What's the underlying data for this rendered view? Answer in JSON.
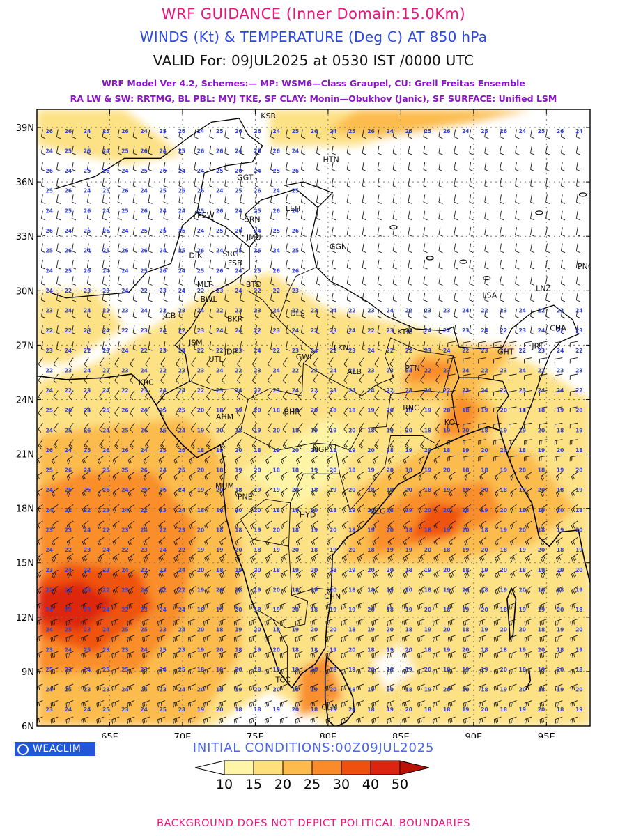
{
  "header": {
    "title": "WRF GUIDANCE (Inner Domain:15.0Km)",
    "subtitle": "WINDS (Kt) & TEMPERATURE (Deg C) AT 850 hPa",
    "valid": "VALID For: 09JUL2025 at 0530 IST /0000 UTC",
    "model_line": "WRF Model Ver 4.2, Schemes:— MP: WSM6—Class Graupel, CU: Grell Freitas Ensemble",
    "scheme_line": "RA LW & SW: RRTMG, BL PBL: MYJ TKE, SF CLAY: Monin—Obukhov (Janic), SF SURFACE: Unified LSM"
  },
  "colors": {
    "title": "#e8157a",
    "subtitle": "#2b48e6",
    "valid": "#111111",
    "schemes": "#8a14c8",
    "grid": "#777777",
    "coast": "#000000",
    "isotherm_label": "#3040d8",
    "logo_bg": "#2355d8",
    "init": "#4a68e6",
    "footer": "#e8157a"
  },
  "map": {
    "lon_range": [
      60,
      98
    ],
    "lat_range": [
      6,
      40
    ],
    "lon_ticks": [
      {
        "lon": 65,
        "label": "65E"
      },
      {
        "lon": 70,
        "label": "70E"
      },
      {
        "lon": 75,
        "label": "75E"
      },
      {
        "lon": 80,
        "label": "80E"
      },
      {
        "lon": 85,
        "label": "85E"
      },
      {
        "lon": 90,
        "label": "90E"
      },
      {
        "lon": 95,
        "label": "95E"
      }
    ],
    "lat_ticks": [
      {
        "lat": 39,
        "label": "39N"
      },
      {
        "lat": 36,
        "label": "36N"
      },
      {
        "lat": 33,
        "label": "33N"
      },
      {
        "lat": 30,
        "label": "30N"
      },
      {
        "lat": 27,
        "label": "27N"
      },
      {
        "lat": 24,
        "label": "24N"
      },
      {
        "lat": 21,
        "label": "21N"
      },
      {
        "lat": 18,
        "label": "18N"
      },
      {
        "lat": 15,
        "label": "15N"
      },
      {
        "lat": 12,
        "label": "12N"
      },
      {
        "lat": 9,
        "label": "9N"
      },
      {
        "lat": 6,
        "label": "6N"
      }
    ],
    "stations": [
      {
        "code": "KSR",
        "lon": 75.9,
        "lat": 39.5
      },
      {
        "code": "HTN",
        "lon": 80.2,
        "lat": 37.1
      },
      {
        "code": "GGT",
        "lon": 74.3,
        "lat": 36.1
      },
      {
        "code": "LEH",
        "lon": 77.6,
        "lat": 34.4
      },
      {
        "code": "PSW",
        "lon": 71.6,
        "lat": 34.0
      },
      {
        "code": "SRN",
        "lon": 74.8,
        "lat": 33.8
      },
      {
        "code": "JMU",
        "lon": 74.9,
        "lat": 32.8
      },
      {
        "code": "GGN",
        "lon": 80.7,
        "lat": 32.3
      },
      {
        "code": "DIK",
        "lon": 70.9,
        "lat": 31.8
      },
      {
        "code": "SRG",
        "lon": 73.3,
        "lat": 31.9
      },
      {
        "code": "FSB",
        "lon": 73.6,
        "lat": 31.4
      },
      {
        "code": "PNG",
        "lon": 97.7,
        "lat": 31.2
      },
      {
        "code": "MLT",
        "lon": 71.5,
        "lat": 30.2
      },
      {
        "code": "BTD",
        "lon": 74.9,
        "lat": 30.2
      },
      {
        "code": "LNZ",
        "lon": 94.8,
        "lat": 30.0
      },
      {
        "code": "BWL",
        "lon": 71.8,
        "lat": 29.4
      },
      {
        "code": "LSA",
        "lon": 91.1,
        "lat": 29.6
      },
      {
        "code": "JCB",
        "lon": 69.1,
        "lat": 28.5
      },
      {
        "code": "DLS",
        "lon": 77.9,
        "lat": 28.6
      },
      {
        "code": "BKR",
        "lon": 73.6,
        "lat": 28.3
      },
      {
        "code": "KTM",
        "lon": 85.3,
        "lat": 27.6
      },
      {
        "code": "JSM",
        "lon": 70.9,
        "lat": 27.0
      },
      {
        "code": "JDP",
        "lon": 73.3,
        "lat": 26.5
      },
      {
        "code": "LKN",
        "lon": 80.9,
        "lat": 26.7
      },
      {
        "code": "GHT",
        "lon": 92.2,
        "lat": 26.5
      },
      {
        "code": "UTL",
        "lon": 72.3,
        "lat": 26.1
      },
      {
        "code": "GWL",
        "lon": 78.4,
        "lat": 26.2
      },
      {
        "code": "PTN",
        "lon": 85.8,
        "lat": 25.6
      },
      {
        "code": "ALB",
        "lon": 81.8,
        "lat": 25.4
      },
      {
        "code": "KRC",
        "lon": 67.5,
        "lat": 24.8
      },
      {
        "code": "RNC",
        "lon": 85.7,
        "lat": 23.4
      },
      {
        "code": "BHP",
        "lon": 77.5,
        "lat": 23.2
      },
      {
        "code": "AHM",
        "lon": 72.9,
        "lat": 22.9
      },
      {
        "code": "KOL",
        "lon": 88.5,
        "lat": 22.6
      },
      {
        "code": "NGP",
        "lon": 79.5,
        "lat": 21.1
      },
      {
        "code": "MUM",
        "lon": 72.9,
        "lat": 19.1
      },
      {
        "code": "PNE",
        "lon": 74.3,
        "lat": 18.5
      },
      {
        "code": "HYD",
        "lon": 78.6,
        "lat": 17.5
      },
      {
        "code": "VZG",
        "lon": 83.4,
        "lat": 17.7
      },
      {
        "code": "CHN",
        "lon": 80.3,
        "lat": 13.0
      },
      {
        "code": "TCC",
        "lon": 76.9,
        "lat": 8.4
      },
      {
        "code": "CLM",
        "lon": 80.1,
        "lat": 6.9
      },
      {
        "code": "CHA",
        "lon": 95.8,
        "lat": 27.8
      },
      {
        "code": "JRT",
        "lon": 94.4,
        "lat": 26.8
      }
    ]
  },
  "colorbar": {
    "levels": [
      "10",
      "15",
      "20",
      "25",
      "30",
      "40",
      "50"
    ],
    "colors": [
      "#ffffff",
      "#fef5a8",
      "#fddf7e",
      "#fcbb4c",
      "#f98b2a",
      "#ef5010",
      "#dc2410",
      "#bb1208"
    ]
  },
  "logo": {
    "label": "WEACLIM"
  },
  "init_conditions": "INITIAL CONDITIONS:00Z09JUL2025",
  "footer": "BACKGROUND DOES NOT DEPICT POLITICAL BOUNDARIES"
}
